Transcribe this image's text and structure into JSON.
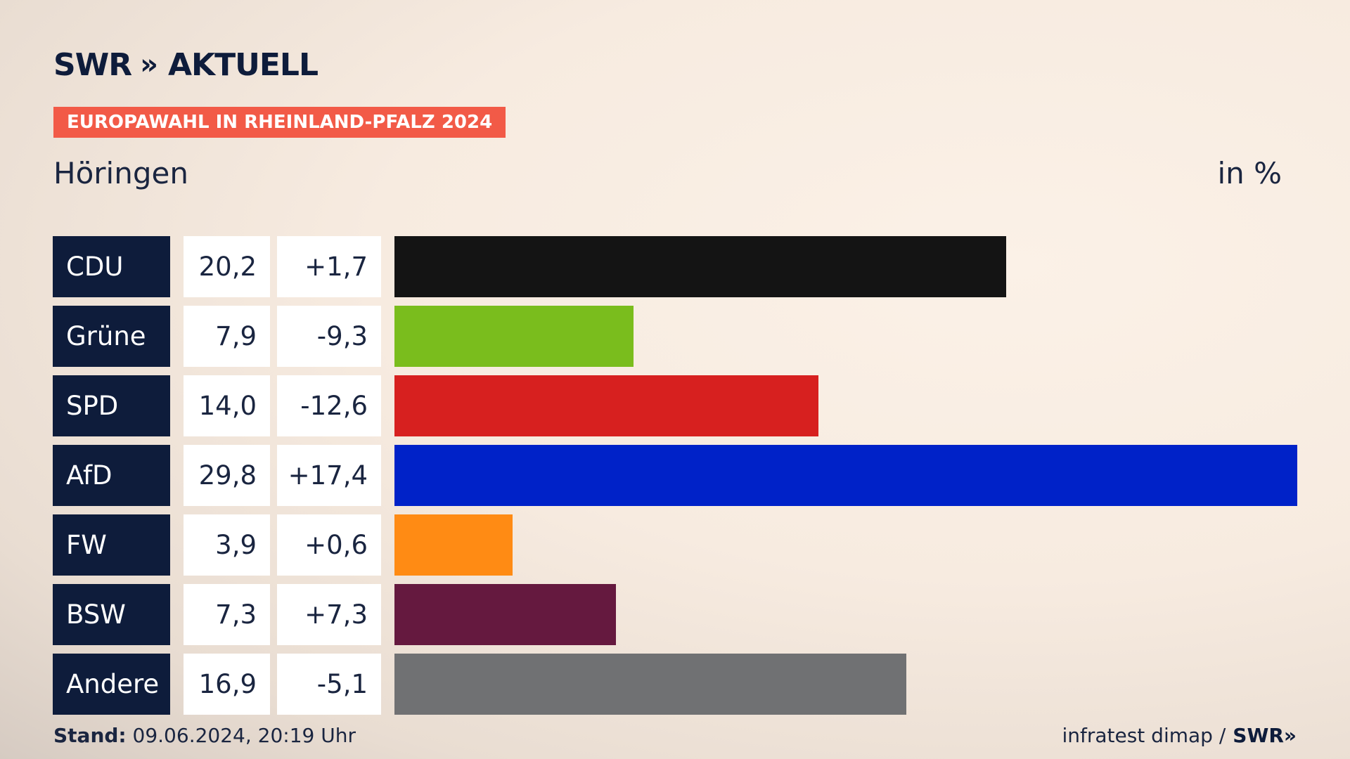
{
  "brand": {
    "name": "SWR",
    "chevrons": "»",
    "section": "AKTUELL"
  },
  "badge": "EUROPAWAHL IN RHEINLAND-PFALZ 2024",
  "subtitle": "Höringen",
  "unit": "in %",
  "chart_data": {
    "type": "bar",
    "orientation": "horizontal",
    "title": "Höringen",
    "unit": "in %",
    "categories": [
      "CDU",
      "Grüne",
      "SPD",
      "AfD",
      "FW",
      "BSW",
      "Andere"
    ],
    "values": [
      20.2,
      7.9,
      14.0,
      29.8,
      3.9,
      7.3,
      16.9
    ],
    "value_labels": [
      "20,2",
      "7,9",
      "14,0",
      "29,8",
      "3,9",
      "7,3",
      "16,9"
    ],
    "diff_labels": [
      "+1,7",
      "-9,3",
      "-12,6",
      "+17,4",
      "+0,6",
      "+7,3",
      "-5,1"
    ],
    "colors": [
      "#141414",
      "#7abd1d",
      "#d7201f",
      "#0022c8",
      "#ff8b14",
      "#65193f",
      "#707173"
    ],
    "xlim": [
      0,
      29.8
    ]
  },
  "footer": {
    "stand_label": "Stand:",
    "stand_value": "09.06.2024, 20:19 Uhr",
    "source": "infratest dimap /",
    "source_brand": "SWR"
  }
}
